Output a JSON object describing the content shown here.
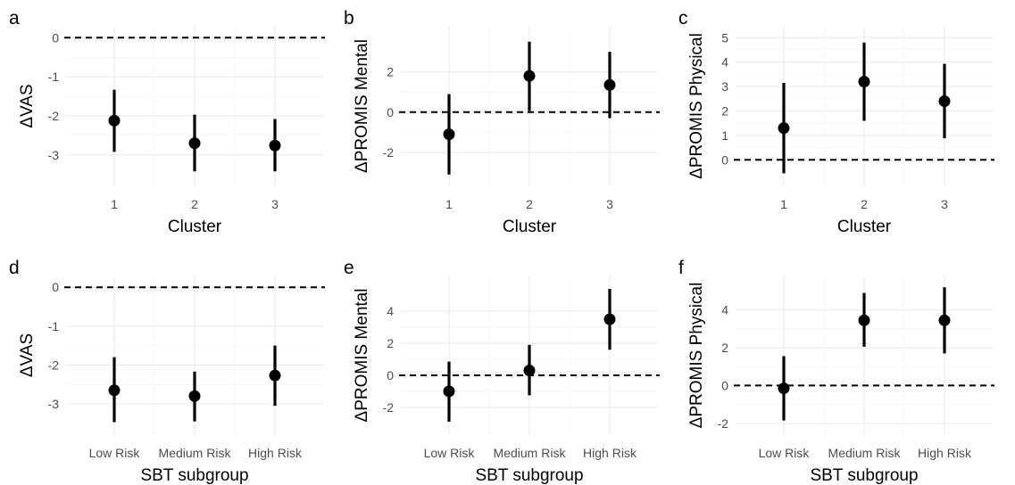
{
  "chart_data": [
    {
      "tag": "a",
      "type": "scatter",
      "categories": [
        "1",
        "2",
        "3"
      ],
      "xlabel": "Cluster",
      "ylabel": "ΔVAS",
      "ylim": [
        -3.5,
        0.0
      ],
      "yticks": [
        -3,
        -2,
        -1,
        0
      ],
      "reference_line": 0,
      "grid": true,
      "points": [
        {
          "x": "1",
          "y": -2.12,
          "lower": -2.92,
          "upper": -1.33
        },
        {
          "x": "2",
          "y": -2.7,
          "lower": -3.42,
          "upper": -1.97
        },
        {
          "x": "3",
          "y": -2.76,
          "lower": -3.42,
          "upper": -2.08
        }
      ]
    },
    {
      "tag": "b",
      "type": "scatter",
      "categories": [
        "1",
        "2",
        "3"
      ],
      "xlabel": "Cluster",
      "ylabel": "ΔPROMIS Mental",
      "ylim": [
        -3.1,
        3.7
      ],
      "yticks": [
        -2,
        0,
        2
      ],
      "reference_line": 0,
      "grid": true,
      "points": [
        {
          "x": "1",
          "y": -1.1,
          "lower": -3.1,
          "upper": 0.9
        },
        {
          "x": "2",
          "y": 1.8,
          "lower": 0.05,
          "upper": 3.5
        },
        {
          "x": "3",
          "y": 1.35,
          "lower": -0.3,
          "upper": 3.0
        }
      ]
    },
    {
      "tag": "c",
      "type": "scatter",
      "categories": [
        "1",
        "2",
        "3"
      ],
      "xlabel": "Cluster",
      "ylabel": "ΔPROMIS Physical",
      "ylim": [
        -0.6,
        5.0
      ],
      "yticks": [
        0,
        1,
        2,
        3,
        4,
        5
      ],
      "reference_line": 0,
      "grid": true,
      "points": [
        {
          "x": "1",
          "y": 1.3,
          "lower": -0.55,
          "upper": 3.15
        },
        {
          "x": "2",
          "y": 3.2,
          "lower": 1.6,
          "upper": 4.8
        },
        {
          "x": "3",
          "y": 2.4,
          "lower": 0.88,
          "upper": 3.93
        }
      ]
    },
    {
      "tag": "d",
      "type": "scatter",
      "categories": [
        "Low Risk",
        "Medium Risk",
        "High Risk"
      ],
      "xlabel": "SBT subgroup",
      "ylabel": "ΔVAS",
      "ylim": [
        -3.5,
        0.0
      ],
      "yticks": [
        -3,
        -2,
        -1,
        0
      ],
      "reference_line": 0,
      "grid": true,
      "points": [
        {
          "x": "Low Risk",
          "y": -2.65,
          "lower": -3.47,
          "upper": -1.8
        },
        {
          "x": "Medium Risk",
          "y": -2.8,
          "lower": -3.45,
          "upper": -2.17
        },
        {
          "x": "High Risk",
          "y": -2.27,
          "lower": -3.05,
          "upper": -1.5
        }
      ]
    },
    {
      "tag": "e",
      "type": "scatter",
      "categories": [
        "Low Risk",
        "Medium Risk",
        "High Risk"
      ],
      "xlabel": "SBT subgroup",
      "ylabel": "ΔPROMIS Mental",
      "ylim": [
        -3.0,
        5.5
      ],
      "yticks": [
        -2,
        0,
        2,
        4
      ],
      "reference_line": 0,
      "grid": true,
      "points": [
        {
          "x": "Low Risk",
          "y": -1.0,
          "lower": -2.9,
          "upper": 0.85
        },
        {
          "x": "Medium Risk",
          "y": 0.3,
          "lower": -1.25,
          "upper": 1.9
        },
        {
          "x": "High Risk",
          "y": 3.5,
          "lower": 1.6,
          "upper": 5.4
        }
      ]
    },
    {
      "tag": "f",
      "type": "scatter",
      "categories": [
        "Low Risk",
        "Medium Risk",
        "High Risk"
      ],
      "xlabel": "SBT subgroup",
      "ylabel": "ΔPROMIS Physical",
      "ylim": [
        -2.0,
        5.2
      ],
      "yticks": [
        -2,
        0,
        2,
        4
      ],
      "reference_line": 0,
      "grid": true,
      "points": [
        {
          "x": "Low Risk",
          "y": -0.15,
          "lower": -1.85,
          "upper": 1.55
        },
        {
          "x": "Medium Risk",
          "y": 3.45,
          "lower": 2.05,
          "upper": 4.9
        },
        {
          "x": "High Risk",
          "y": 3.45,
          "lower": 1.7,
          "upper": 5.2
        }
      ]
    }
  ]
}
